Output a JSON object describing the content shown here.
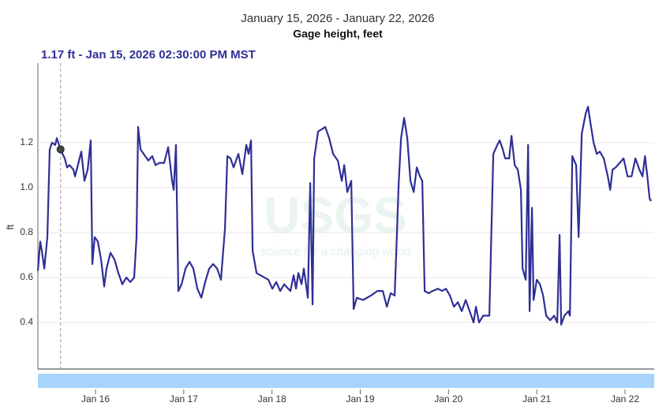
{
  "chart_data": {
    "type": "line",
    "title": "January 15, 2026 - January 22, 2026",
    "subtitle": "Gage height, feet",
    "y_label": "ft",
    "watermark": {
      "logo": "USGS",
      "tagline": "science for a changing world"
    },
    "tooltip": {
      "x": 0.604,
      "value": 1.17,
      "label": "1.17 ft - Jan 15, 2026 02:30:00 PM MST"
    },
    "x": [
      0.347,
      0.374,
      0.392,
      0.419,
      0.454,
      0.481,
      0.508,
      0.544,
      0.562,
      0.604,
      0.651,
      0.678,
      0.705,
      0.75,
      0.767,
      0.794,
      0.839,
      0.875,
      0.911,
      0.946,
      0.964,
      0.991,
      1.027,
      1.063,
      1.098,
      1.125,
      1.17,
      1.215,
      1.259,
      1.304,
      1.349,
      1.394,
      1.438,
      1.465,
      1.483,
      1.51,
      1.546,
      1.599,
      1.644,
      1.68,
      1.725,
      1.778,
      1.823,
      1.868,
      1.886,
      1.912,
      1.939,
      1.975,
      2.02,
      2.065,
      2.109,
      2.154,
      2.199,
      2.243,
      2.288,
      2.333,
      2.378,
      2.422,
      2.467,
      2.494,
      2.53,
      2.565,
      2.619,
      2.664,
      2.709,
      2.735,
      2.762,
      2.78,
      2.825,
      2.869,
      2.959,
      3.004,
      3.048,
      3.093,
      3.138,
      3.209,
      3.245,
      3.272,
      3.299,
      3.335,
      3.361,
      3.406,
      3.433,
      3.46,
      3.478,
      3.522,
      3.567,
      3.603,
      3.648,
      3.692,
      3.746,
      3.791,
      3.818,
      3.853,
      3.898,
      3.925,
      3.961,
      4.032,
      4.122,
      4.193,
      4.256,
      4.301,
      4.345,
      4.39,
      4.408,
      4.435,
      4.462,
      4.497,
      4.533,
      4.569,
      4.605,
      4.64,
      4.676,
      4.703,
      4.73,
      4.775,
      4.819,
      4.882,
      4.927,
      4.971,
      5.016,
      5.061,
      5.106,
      5.15,
      5.195,
      5.24,
      5.284,
      5.311,
      5.347,
      5.392,
      5.463,
      5.508,
      5.553,
      5.58,
      5.615,
      5.642,
      5.687,
      5.714,
      5.75,
      5.785,
      5.821,
      5.839,
      5.875,
      5.902,
      5.919,
      5.946,
      5.964,
      6.0,
      6.036,
      6.072,
      6.107,
      6.152,
      6.197,
      6.232,
      6.259,
      6.277,
      6.313,
      6.358,
      6.376,
      6.403,
      6.447,
      6.474,
      6.51,
      6.555,
      6.581,
      6.608,
      6.644,
      6.68,
      6.715,
      6.76,
      6.805,
      6.832,
      6.859,
      6.895,
      6.939,
      6.984,
      7.029,
      7.074,
      7.118,
      7.163,
      7.199,
      7.226,
      7.253,
      7.279,
      7.297
    ],
    "series": [
      {
        "name": "Gage height",
        "color": "#2e2f96",
        "values": [
          0.63,
          0.76,
          0.72,
          0.64,
          0.78,
          1.17,
          1.2,
          1.19,
          1.22,
          1.17,
          1.13,
          1.09,
          1.1,
          1.08,
          1.05,
          1.09,
          1.16,
          1.03,
          1.08,
          1.21,
          0.66,
          0.78,
          0.76,
          0.68,
          0.56,
          0.64,
          0.71,
          0.68,
          0.62,
          0.57,
          0.6,
          0.58,
          0.6,
          0.78,
          1.27,
          1.17,
          1.15,
          1.12,
          1.14,
          1.1,
          1.11,
          1.11,
          1.18,
          1.03,
          0.99,
          1.19,
          0.54,
          0.57,
          0.64,
          0.67,
          0.64,
          0.55,
          0.51,
          0.58,
          0.64,
          0.66,
          0.64,
          0.59,
          0.82,
          1.14,
          1.13,
          1.09,
          1.15,
          1.06,
          1.19,
          1.15,
          1.21,
          0.72,
          0.62,
          0.61,
          0.59,
          0.55,
          0.58,
          0.54,
          0.57,
          0.54,
          0.61,
          0.55,
          0.62,
          0.57,
          0.64,
          0.51,
          1.02,
          0.48,
          1.13,
          1.25,
          1.26,
          1.27,
          1.22,
          1.15,
          1.12,
          1.03,
          1.1,
          0.98,
          1.03,
          0.46,
          0.51,
          0.5,
          0.52,
          0.54,
          0.54,
          0.47,
          0.53,
          0.52,
          0.71,
          1.01,
          1.22,
          1.31,
          1.22,
          1.03,
          0.98,
          1.09,
          1.05,
          1.03,
          0.54,
          0.53,
          0.54,
          0.55,
          0.54,
          0.55,
          0.52,
          0.47,
          0.49,
          0.45,
          0.5,
          0.45,
          0.4,
          0.47,
          0.4,
          0.43,
          0.43,
          1.15,
          1.19,
          1.21,
          1.17,
          1.13,
          1.13,
          1.23,
          1.1,
          1.08,
          0.99,
          0.64,
          0.59,
          1.19,
          0.45,
          0.91,
          0.5,
          0.59,
          0.57,
          0.52,
          0.43,
          0.41,
          0.43,
          0.4,
          0.79,
          0.39,
          0.43,
          0.45,
          0.43,
          1.14,
          1.1,
          0.78,
          1.24,
          1.33,
          1.36,
          1.29,
          1.2,
          1.15,
          1.16,
          1.13,
          1.05,
          0.99,
          1.08,
          1.09,
          1.11,
          1.13,
          1.05,
          1.05,
          1.13,
          1.08,
          1.05,
          1.14,
          1.05,
          0.95,
          0.94
        ]
      }
    ],
    "xlim": [
      0.347,
      7.331
    ],
    "xticks": [
      {
        "value": 1,
        "label": "Jan 16"
      },
      {
        "value": 2,
        "label": "Jan 17"
      },
      {
        "value": 3,
        "label": "Jan 18"
      },
      {
        "value": 4,
        "label": "Jan 19"
      },
      {
        "value": 5,
        "label": "Jan 20"
      },
      {
        "value": 6,
        "label": "Jan 21"
      },
      {
        "value": 7,
        "label": "Jan 22"
      }
    ],
    "ylim": [
      0.193,
      1.554
    ],
    "yticks": [
      0.4,
      0.6,
      0.8,
      {
        "value": 1,
        "label": "1.0"
      },
      1.2
    ],
    "grid": true
  }
}
